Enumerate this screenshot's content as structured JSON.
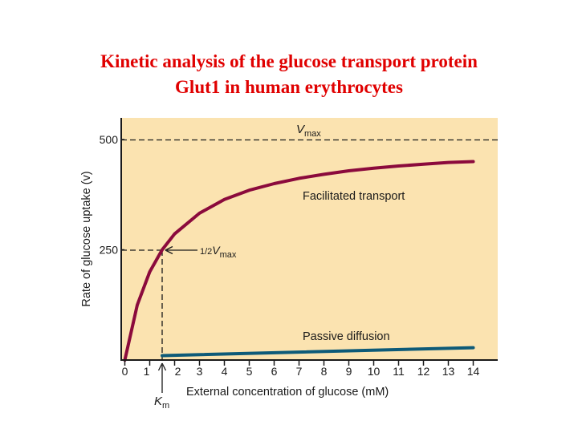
{
  "slide": {
    "title_line1": "Kinetic analysis of the glucose transport protein",
    "title_line2": "Glut1 in human erythrocytes"
  },
  "chart_data": {
    "type": "line",
    "xlabel": "External concentration of glucose (mM)",
    "ylabel": "Rate of glucose uptake (v)",
    "x_ticks": [
      "0",
      "1",
      "2",
      "3",
      "4",
      "5",
      "6",
      "7",
      "8",
      "9",
      "10",
      "11",
      "12",
      "13",
      "14"
    ],
    "y_ticks": [
      "250",
      "500"
    ],
    "xlim": [
      0,
      15
    ],
    "ylim": [
      0,
      530
    ],
    "Vmax": 500,
    "Km": 1.5,
    "series": [
      {
        "name": "Facilitated transport",
        "color": "#8b0a3c",
        "x": [
          0,
          0.5,
          1,
          1.5,
          2,
          3,
          4,
          5,
          6,
          7,
          8,
          9,
          10,
          11,
          12,
          13,
          14
        ],
        "y": [
          0,
          125,
          200,
          250,
          286,
          333,
          364,
          385,
          400,
          412,
          421,
          429,
          435,
          440,
          444,
          448,
          450
        ]
      },
      {
        "name": "Passive diffusion",
        "color": "#0d5a78",
        "x": [
          1.5,
          14
        ],
        "y": [
          10,
          28
        ]
      }
    ],
    "annotations": {
      "vmax_V": "V",
      "vmax_sub": "max",
      "half_frac": "1/2",
      "half_V": "V",
      "half_sub": "max",
      "km_K": "K",
      "km_sub": "m"
    },
    "colors": {
      "plot_background": "#fbe3b0",
      "axis": "#1a1a1a",
      "title": "#e00000"
    }
  }
}
